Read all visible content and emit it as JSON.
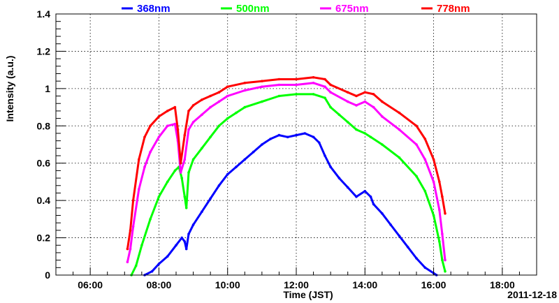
{
  "chart_data": {
    "type": "scatter",
    "title": "",
    "xlabel": "Time (JST)",
    "ylabel": "Intensity (a.u.)",
    "date_label": "2011-12-18",
    "xlim": [
      "05:00",
      "19:00"
    ],
    "ylim": [
      0,
      1.4
    ],
    "grid": true,
    "legend_position": "top",
    "x_ticks": [
      "06:00",
      "08:00",
      "10:00",
      "12:00",
      "14:00",
      "16:00",
      "18:00"
    ],
    "y_ticks": [
      "0",
      "0.2",
      "0.4",
      "0.6",
      "0.8",
      "1",
      "1.2",
      "1.4"
    ],
    "series": [
      {
        "name": "368nm",
        "color": "#0000ff",
        "points": [
          [
            "07:35",
            0.0
          ],
          [
            "07:48",
            0.02
          ],
          [
            "08:00",
            0.06
          ],
          [
            "08:15",
            0.1
          ],
          [
            "08:30",
            0.16
          ],
          [
            "08:40",
            0.2
          ],
          [
            "08:45",
            0.18
          ],
          [
            "08:48",
            0.14
          ],
          [
            "08:52",
            0.22
          ],
          [
            "09:00",
            0.27
          ],
          [
            "09:15",
            0.34
          ],
          [
            "09:30",
            0.41
          ],
          [
            "09:45",
            0.48
          ],
          [
            "10:00",
            0.54
          ],
          [
            "10:15",
            0.58
          ],
          [
            "10:30",
            0.62
          ],
          [
            "10:45",
            0.66
          ],
          [
            "11:00",
            0.7
          ],
          [
            "11:15",
            0.73
          ],
          [
            "11:30",
            0.75
          ],
          [
            "11:45",
            0.74
          ],
          [
            "12:00",
            0.75
          ],
          [
            "12:15",
            0.76
          ],
          [
            "12:30",
            0.74
          ],
          [
            "12:40",
            0.71
          ],
          [
            "12:50",
            0.64
          ],
          [
            "13:00",
            0.58
          ],
          [
            "13:15",
            0.52
          ],
          [
            "13:30",
            0.47
          ],
          [
            "13:45",
            0.42
          ],
          [
            "14:00",
            0.45
          ],
          [
            "14:10",
            0.42
          ],
          [
            "14:15",
            0.38
          ],
          [
            "14:30",
            0.33
          ],
          [
            "14:45",
            0.27
          ],
          [
            "15:00",
            0.21
          ],
          [
            "15:15",
            0.15
          ],
          [
            "15:30",
            0.09
          ],
          [
            "15:45",
            0.04
          ],
          [
            "16:00",
            0.01
          ],
          [
            "16:05",
            0.0
          ]
        ]
      },
      {
        "name": "500nm",
        "color": "#00ff00",
        "points": [
          [
            "07:12",
            0.0
          ],
          [
            "07:20",
            0.05
          ],
          [
            "07:30",
            0.16
          ],
          [
            "07:45",
            0.3
          ],
          [
            "08:00",
            0.42
          ],
          [
            "08:15",
            0.5
          ],
          [
            "08:28",
            0.56
          ],
          [
            "08:35",
            0.58
          ],
          [
            "08:40",
            0.52
          ],
          [
            "08:45",
            0.42
          ],
          [
            "08:48",
            0.36
          ],
          [
            "08:52",
            0.55
          ],
          [
            "09:00",
            0.62
          ],
          [
            "09:15",
            0.68
          ],
          [
            "09:30",
            0.74
          ],
          [
            "09:45",
            0.8
          ],
          [
            "10:00",
            0.84
          ],
          [
            "10:15",
            0.87
          ],
          [
            "10:30",
            0.9
          ],
          [
            "11:00",
            0.93
          ],
          [
            "11:30",
            0.96
          ],
          [
            "12:00",
            0.97
          ],
          [
            "12:30",
            0.97
          ],
          [
            "12:50",
            0.95
          ],
          [
            "13:00",
            0.9
          ],
          [
            "13:15",
            0.86
          ],
          [
            "13:30",
            0.82
          ],
          [
            "13:45",
            0.78
          ],
          [
            "14:00",
            0.76
          ],
          [
            "14:10",
            0.74
          ],
          [
            "14:30",
            0.7
          ],
          [
            "15:00",
            0.63
          ],
          [
            "15:30",
            0.53
          ],
          [
            "15:45",
            0.45
          ],
          [
            "16:00",
            0.32
          ],
          [
            "16:10",
            0.18
          ],
          [
            "16:15",
            0.08
          ],
          [
            "16:20",
            0.02
          ]
        ]
      },
      {
        "name": "675nm",
        "color": "#ff00ff",
        "points": [
          [
            "07:05",
            0.07
          ],
          [
            "07:10",
            0.14
          ],
          [
            "07:15",
            0.26
          ],
          [
            "07:25",
            0.46
          ],
          [
            "07:35",
            0.58
          ],
          [
            "07:45",
            0.66
          ],
          [
            "08:00",
            0.74
          ],
          [
            "08:15",
            0.8
          ],
          [
            "08:28",
            0.81
          ],
          [
            "08:33",
            0.72
          ],
          [
            "08:38",
            0.55
          ],
          [
            "08:45",
            0.62
          ],
          [
            "08:52",
            0.78
          ],
          [
            "09:00",
            0.82
          ],
          [
            "09:15",
            0.86
          ],
          [
            "09:30",
            0.9
          ],
          [
            "09:45",
            0.93
          ],
          [
            "10:00",
            0.96
          ],
          [
            "10:30",
            0.99
          ],
          [
            "11:00",
            1.01
          ],
          [
            "11:30",
            1.02
          ],
          [
            "12:00",
            1.02
          ],
          [
            "12:30",
            1.03
          ],
          [
            "12:50",
            1.01
          ],
          [
            "13:00",
            0.98
          ],
          [
            "13:30",
            0.93
          ],
          [
            "13:45",
            0.91
          ],
          [
            "14:00",
            0.93
          ],
          [
            "14:15",
            0.9
          ],
          [
            "14:30",
            0.85
          ],
          [
            "15:00",
            0.78
          ],
          [
            "15:30",
            0.7
          ],
          [
            "15:45",
            0.62
          ],
          [
            "16:00",
            0.5
          ],
          [
            "16:10",
            0.35
          ],
          [
            "16:15",
            0.22
          ],
          [
            "16:20",
            0.08
          ]
        ]
      },
      {
        "name": "778nm",
        "color": "#ff0000",
        "points": [
          [
            "07:05",
            0.14
          ],
          [
            "07:10",
            0.24
          ],
          [
            "07:15",
            0.4
          ],
          [
            "07:25",
            0.62
          ],
          [
            "07:35",
            0.74
          ],
          [
            "07:45",
            0.8
          ],
          [
            "08:00",
            0.85
          ],
          [
            "08:15",
            0.88
          ],
          [
            "08:28",
            0.9
          ],
          [
            "08:33",
            0.78
          ],
          [
            "08:38",
            0.6
          ],
          [
            "08:45",
            0.75
          ],
          [
            "08:52",
            0.88
          ],
          [
            "09:00",
            0.91
          ],
          [
            "09:15",
            0.94
          ],
          [
            "09:30",
            0.96
          ],
          [
            "09:45",
            0.98
          ],
          [
            "10:00",
            1.01
          ],
          [
            "10:30",
            1.03
          ],
          [
            "11:00",
            1.04
          ],
          [
            "11:30",
            1.05
          ],
          [
            "12:00",
            1.05
          ],
          [
            "12:30",
            1.06
          ],
          [
            "12:50",
            1.05
          ],
          [
            "13:00",
            1.02
          ],
          [
            "13:30",
            0.98
          ],
          [
            "13:45",
            0.96
          ],
          [
            "14:00",
            0.98
          ],
          [
            "14:15",
            0.97
          ],
          [
            "14:30",
            0.93
          ],
          [
            "15:00",
            0.87
          ],
          [
            "15:30",
            0.8
          ],
          [
            "15:45",
            0.73
          ],
          [
            "16:00",
            0.62
          ],
          [
            "16:10",
            0.5
          ],
          [
            "16:15",
            0.42
          ],
          [
            "16:20",
            0.33
          ]
        ]
      }
    ]
  }
}
